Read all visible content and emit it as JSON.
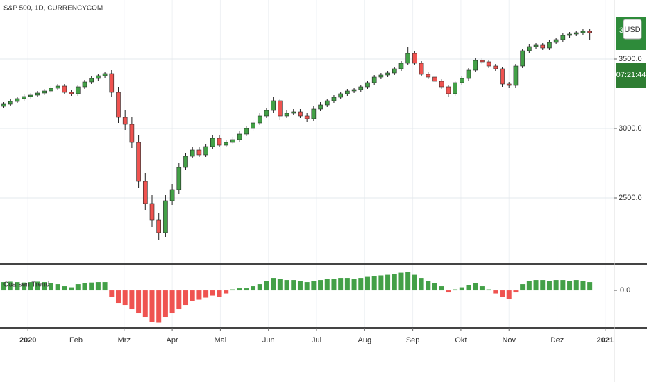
{
  "chart_data": [
    {
      "type": "candlestick",
      "title": "S&P 500, 1D, CURRENCYCOM",
      "currency": "USD",
      "countdown": "07:21:44",
      "up_color": "#43a047",
      "down_color": "#ef5350",
      "grid": true,
      "xlim": [
        -0.58,
        12.19
      ],
      "xticks": [
        {
          "value": 0,
          "label": "2020"
        },
        {
          "value": 1,
          "label": "Feb"
        },
        {
          "value": 2,
          "label": "Mrz"
        },
        {
          "value": 3,
          "label": "Apr"
        },
        {
          "value": 4,
          "label": "Mai"
        },
        {
          "value": 5,
          "label": "Jun"
        },
        {
          "value": 6,
          "label": "Jul"
        },
        {
          "value": 7,
          "label": "Aug"
        },
        {
          "value": 8,
          "label": "Sep"
        },
        {
          "value": 9,
          "label": "Okt"
        },
        {
          "value": 10,
          "label": "Nov"
        },
        {
          "value": 11,
          "label": "Dez"
        },
        {
          "value": 12,
          "label": "2021"
        }
      ],
      "ylim": [
        2025,
        3925
      ],
      "yticks": [
        {
          "value": 2500,
          "label": "2500.0"
        },
        {
          "value": 3000,
          "label": "3000.0"
        },
        {
          "value": 3500,
          "label": "3500.0"
        }
      ],
      "x": [
        -0.5,
        -0.36,
        -0.22,
        -0.08,
        0.06,
        0.2,
        0.34,
        0.48,
        0.62,
        0.76,
        0.9,
        1.04,
        1.18,
        1.32,
        1.46,
        1.6,
        1.74,
        1.88,
        2.02,
        2.16,
        2.3,
        2.44,
        2.58,
        2.72,
        2.86,
        3,
        3.14,
        3.28,
        3.42,
        3.56,
        3.7,
        3.84,
        3.98,
        4.12,
        4.26,
        4.4,
        4.54,
        4.68,
        4.82,
        4.96,
        5.1,
        5.24,
        5.38,
        5.52,
        5.66,
        5.8,
        5.94,
        6.08,
        6.22,
        6.36,
        6.5,
        6.64,
        6.78,
        6.92,
        7.06,
        7.2,
        7.34,
        7.48,
        7.62,
        7.76,
        7.9,
        8.04,
        8.18,
        8.32,
        8.46,
        8.6,
        8.74,
        8.88,
        9.02,
        9.16,
        9.3,
        9.44,
        9.58,
        9.72,
        9.86,
        10,
        10.14,
        10.28,
        10.42,
        10.56,
        10.7,
        10.84,
        10.98,
        11.12,
        11.26,
        11.4,
        11.54,
        11.68
      ],
      "open": [
        3160,
        3175,
        3195,
        3215,
        3230,
        3240,
        3255,
        3270,
        3290,
        3305,
        3260,
        3250,
        3300,
        3335,
        3360,
        3380,
        3395,
        3260,
        3080,
        3030,
        2900,
        2620,
        2460,
        2340,
        2250,
        2480,
        2560,
        2720,
        2800,
        2845,
        2810,
        2870,
        2930,
        2880,
        2900,
        2920,
        2960,
        3000,
        3040,
        3090,
        3130,
        3200,
        3090,
        3110,
        3120,
        3090,
        3070,
        3140,
        3170,
        3200,
        3225,
        3250,
        3270,
        3280,
        3300,
        3330,
        3370,
        3385,
        3400,
        3430,
        3470,
        3540,
        3470,
        3390,
        3370,
        3340,
        3300,
        3250,
        3330,
        3360,
        3420,
        3490,
        3480,
        3450,
        3430,
        3320,
        3310,
        3450,
        3560,
        3590,
        3600,
        3580,
        3620,
        3640,
        3670,
        3680,
        3690,
        3700
      ],
      "high": [
        3190,
        3210,
        3230,
        3245,
        3255,
        3270,
        3285,
        3305,
        3320,
        3320,
        3275,
        3315,
        3350,
        3375,
        3395,
        3410,
        3420,
        3300,
        3130,
        3080,
        2950,
        2680,
        2520,
        2390,
        2520,
        2600,
        2750,
        2820,
        2865,
        2865,
        2890,
        2950,
        2950,
        2920,
        2940,
        2980,
        3020,
        3060,
        3110,
        3150,
        3225,
        3215,
        3130,
        3140,
        3140,
        3110,
        3160,
        3190,
        3215,
        3240,
        3265,
        3285,
        3295,
        3315,
        3345,
        3385,
        3400,
        3415,
        3445,
        3485,
        3585,
        3555,
        3485,
        3410,
        3390,
        3355,
        3315,
        3345,
        3375,
        3435,
        3510,
        3505,
        3495,
        3465,
        3445,
        3335,
        3465,
        3575,
        3610,
        3615,
        3615,
        3635,
        3655,
        3685,
        3695,
        3705,
        3715,
        3715
      ],
      "low": [
        3145,
        3160,
        3180,
        3200,
        3215,
        3225,
        3240,
        3255,
        3275,
        3245,
        3235,
        3235,
        3285,
        3320,
        3345,
        3365,
        3230,
        3040,
        2990,
        2860,
        2570,
        2410,
        2290,
        2200,
        2220,
        2450,
        2530,
        2700,
        2785,
        2795,
        2795,
        2855,
        2865,
        2865,
        2885,
        2905,
        2945,
        2985,
        3025,
        3075,
        3115,
        3060,
        3075,
        3095,
        3075,
        3050,
        3055,
        3125,
        3155,
        3185,
        3210,
        3235,
        3255,
        3265,
        3285,
        3315,
        3355,
        3370,
        3385,
        3415,
        3455,
        3455,
        3375,
        3355,
        3325,
        3285,
        3230,
        3235,
        3315,
        3345,
        3405,
        3465,
        3435,
        3415,
        3300,
        3290,
        3295,
        3435,
        3545,
        3575,
        3565,
        3565,
        3605,
        3625,
        3655,
        3665,
        3675,
        3640
      ],
      "close": [
        3175,
        3195,
        3215,
        3230,
        3240,
        3255,
        3270,
        3290,
        3305,
        3260,
        3250,
        3300,
        3335,
        3360,
        3380,
        3395,
        3260,
        3080,
        3030,
        2900,
        2620,
        2460,
        2340,
        2250,
        2480,
        2560,
        2720,
        2800,
        2845,
        2810,
        2870,
        2930,
        2880,
        2900,
        2920,
        2960,
        3000,
        3040,
        3090,
        3130,
        3200,
        3090,
        3110,
        3120,
        3090,
        3070,
        3140,
        3170,
        3200,
        3225,
        3250,
        3270,
        3280,
        3300,
        3330,
        3370,
        3385,
        3400,
        3430,
        3470,
        3540,
        3470,
        3390,
        3370,
        3340,
        3300,
        3250,
        3330,
        3360,
        3420,
        3490,
        3480,
        3450,
        3430,
        3320,
        3310,
        3450,
        3560,
        3590,
        3600,
        3580,
        3620,
        3640,
        3670,
        3680,
        3690,
        3700,
        3690
      ]
    },
    {
      "type": "bar",
      "name": "Coarsen Trend",
      "up_color": "#43a047",
      "down_color": "#ef5350",
      "ylim": [
        -1.8,
        1.27
      ],
      "yticks": [
        {
          "value": 0,
          "label": "0.0"
        }
      ],
      "values": [
        0.4,
        0.42,
        0.4,
        0.38,
        0.4,
        0.42,
        0.4,
        0.35,
        0.3,
        0.2,
        0.15,
        0.3,
        0.35,
        0.38,
        0.4,
        0.4,
        -0.3,
        -0.6,
        -0.7,
        -0.9,
        -1.1,
        -1.3,
        -1.5,
        -1.55,
        -1.3,
        -1.1,
        -0.9,
        -0.7,
        -0.5,
        -0.45,
        -0.35,
        -0.25,
        -0.3,
        -0.15,
        0.05,
        0.1,
        0.1,
        0.2,
        0.3,
        0.45,
        0.6,
        0.55,
        0.5,
        0.5,
        0.45,
        0.4,
        0.45,
        0.5,
        0.55,
        0.55,
        0.6,
        0.6,
        0.55,
        0.6,
        0.65,
        0.7,
        0.72,
        0.75,
        0.8,
        0.85,
        0.9,
        0.75,
        0.6,
        0.45,
        0.35,
        0.2,
        -0.1,
        0.05,
        0.15,
        0.25,
        0.35,
        0.2,
        0.05,
        -0.15,
        -0.3,
        -0.4,
        -0.1,
        0.3,
        0.45,
        0.5,
        0.5,
        0.45,
        0.5,
        0.5,
        0.45,
        0.5,
        0.45,
        0.4
      ]
    }
  ]
}
